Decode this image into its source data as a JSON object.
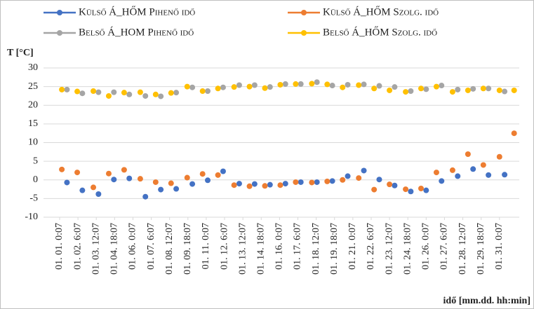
{
  "chart_data": {
    "type": "scatter",
    "y_label": "T [°C]",
    "x_label": "idő [mm.dd. hh:min]",
    "xlim": [
      -1.1,
      31.35
    ],
    "ylim": [
      -10,
      30
    ],
    "yticks": [
      -10,
      -5,
      0,
      5,
      10,
      15,
      20,
      25,
      30
    ],
    "xticks": [
      {
        "value": 0,
        "label": "01. 01. 0:07"
      },
      {
        "value": 1.25,
        "label": "01. 02. 6:07"
      },
      {
        "value": 2.5,
        "label": "01. 03. 12:07"
      },
      {
        "value": 3.75,
        "label": "01. 04. 18:07"
      },
      {
        "value": 5,
        "label": "01. 06. 0:07"
      },
      {
        "value": 6.25,
        "label": "01. 07. 6:07"
      },
      {
        "value": 7.5,
        "label": "01. 08. 12:07"
      },
      {
        "value": 8.75,
        "label": "01. 09. 18:07"
      },
      {
        "value": 10,
        "label": "01. 11. 0:07"
      },
      {
        "value": 11.25,
        "label": "01. 12. 6:07"
      },
      {
        "value": 12.5,
        "label": "01. 13. 12:07"
      },
      {
        "value": 13.75,
        "label": "01. 14. 18:07"
      },
      {
        "value": 15,
        "label": "01. 16. 0:07"
      },
      {
        "value": 16.25,
        "label": "01. 17. 6:07"
      },
      {
        "value": 17.5,
        "label": "01. 18. 12:07"
      },
      {
        "value": 18.75,
        "label": "01. 19. 18:07"
      },
      {
        "value": 20,
        "label": "01. 21. 0:07"
      },
      {
        "value": 21.25,
        "label": "01. 22. 6:07"
      },
      {
        "value": 22.5,
        "label": "01. 23. 12:07"
      },
      {
        "value": 23.75,
        "label": "01. 24. 18:07"
      },
      {
        "value": 25,
        "label": "01. 26. 0:07"
      },
      {
        "value": 26.25,
        "label": "01. 27. 6:07"
      },
      {
        "value": 27.5,
        "label": "01. 28. 12:07"
      },
      {
        "value": 28.75,
        "label": "01. 29. 18:07"
      },
      {
        "value": 30,
        "label": "01. 31. 0:07"
      }
    ],
    "grid": true,
    "series": [
      {
        "name": "Külső Á_HŐM Pihenő idő",
        "color": "#4472c4",
        "x": [
          0.5,
          1.55,
          2.65,
          3.7,
          4.75,
          5.85,
          6.9,
          7.95,
          9.05,
          10.1,
          11.15,
          12.25,
          13.3,
          14.35,
          15.4,
          16.45,
          17.55,
          18.6,
          19.65,
          20.75,
          21.8,
          22.85,
          23.95,
          25,
          26.05,
          27.15,
          28.2,
          29.25,
          30.35
        ],
        "values": [
          -0.7,
          -2.8,
          -3.8,
          0.1,
          0.4,
          -4.5,
          -2.6,
          -2.4,
          -1.1,
          -0.1,
          2.3,
          -1.0,
          -1.1,
          -1.3,
          -1.0,
          -0.6,
          -0.6,
          -0.3,
          1.0,
          2.5,
          0.1,
          -1.5,
          -3.1,
          -2.8,
          -0.3,
          1.0,
          2.9,
          1.3,
          1.4
        ]
      },
      {
        "name": "Külső Á_HŐM Szolg. idő",
        "color": "#ed7d31",
        "x": [
          0.15,
          1.2,
          2.3,
          3.35,
          4.4,
          5.5,
          6.55,
          7.6,
          8.7,
          9.75,
          10.8,
          11.9,
          12.95,
          14,
          15.05,
          16.1,
          17.2,
          18.25,
          19.3,
          20.4,
          21.45,
          22.5,
          23.6,
          24.65,
          25.7,
          26.8,
          27.85,
          28.9,
          30,
          31
        ],
        "values": [
          2.8,
          2.0,
          -2.0,
          1.7,
          2.7,
          0.3,
          -0.6,
          -0.9,
          0.6,
          1.6,
          1.3,
          -1.4,
          -1.7,
          -1.6,
          -1.4,
          -0.6,
          -0.7,
          -0.4,
          0.0,
          0.5,
          -2.6,
          -1.2,
          -2.5,
          -2.3,
          2.0,
          2.6,
          6.9,
          4.0,
          6.2,
          12.5
        ]
      },
      {
        "name": "Belső Á_HOM Pihenő idő",
        "color": "#a5a5a5",
        "x": [
          0.5,
          1.55,
          2.65,
          3.7,
          4.75,
          5.85,
          6.9,
          7.95,
          9.05,
          10.1,
          11.15,
          12.25,
          13.3,
          14.35,
          15.4,
          16.45,
          17.55,
          18.6,
          19.65,
          20.75,
          21.8,
          22.85,
          23.95,
          25,
          26.05,
          27.15,
          28.2,
          29.25,
          30.35
        ],
        "values": [
          24.2,
          23.2,
          23.5,
          23.5,
          22.9,
          22.5,
          22.4,
          23.4,
          24.8,
          23.8,
          24.8,
          25.4,
          25.4,
          24.9,
          25.7,
          25.7,
          26.2,
          25.3,
          25.5,
          25.6,
          25.2,
          24.9,
          23.8,
          24.3,
          25.3,
          24.2,
          24.4,
          24.5,
          23.7
        ]
      },
      {
        "name": "Belső Á_HŐM Szolg. idő",
        "color": "#ffc000",
        "x": [
          0.15,
          1.2,
          2.3,
          3.35,
          4.4,
          5.5,
          6.55,
          7.6,
          8.7,
          9.75,
          10.8,
          11.9,
          12.95,
          14,
          15.05,
          16.1,
          17.2,
          18.25,
          19.3,
          20.4,
          21.45,
          22.5,
          23.6,
          24.65,
          25.7,
          26.8,
          27.85,
          28.9,
          30,
          31
        ],
        "values": [
          24.2,
          23.7,
          23.8,
          22.5,
          23.4,
          23.5,
          22.9,
          23.3,
          25.0,
          23.8,
          24.5,
          24.9,
          25.0,
          24.6,
          25.5,
          25.7,
          25.8,
          25.6,
          24.8,
          25.4,
          24.5,
          24.0,
          23.6,
          24.5,
          25.0,
          23.6,
          24.0,
          24.5,
          24.0,
          24.0
        ]
      }
    ]
  }
}
